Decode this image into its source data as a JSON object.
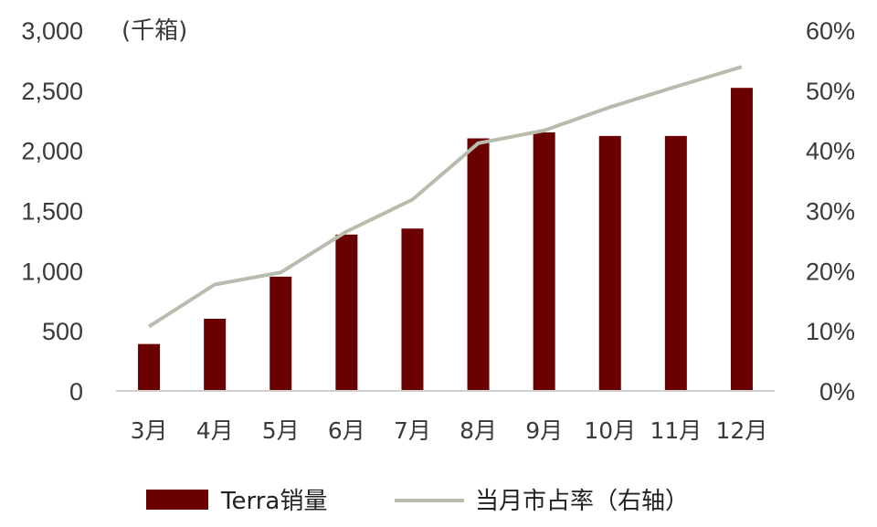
{
  "chart_data": {
    "type": "bar+line",
    "categories": [
      "3月",
      "4月",
      "5月",
      "6月",
      "7月",
      "8月",
      "9月",
      "10月",
      "11月",
      "12月"
    ],
    "series": [
      {
        "name": "Terra销量",
        "kind": "bar",
        "axis": "left",
        "color": "#6b0000",
        "values": [
          390,
          600,
          950,
          1300,
          1350,
          2100,
          2150,
          2120,
          2120,
          2520
        ]
      },
      {
        "name": "当月市占率（右轴）",
        "kind": "line",
        "axis": "right",
        "color": "#b7bcad",
        "values": [
          0.107,
          0.177,
          0.197,
          0.265,
          0.318,
          0.412,
          0.433,
          0.472,
          0.506,
          0.539
        ]
      }
    ],
    "left_axis": {
      "unit_label": "(千箱)",
      "ylim": [
        0,
        3000
      ],
      "ticks": [
        0,
        500,
        1000,
        1500,
        2000,
        2500,
        3000
      ],
      "tick_labels": [
        "0",
        "500",
        "1,000",
        "1,500",
        "2,000",
        "2,500",
        "3,000"
      ]
    },
    "right_axis": {
      "ylim": [
        0,
        0.6
      ],
      "ticks": [
        0,
        0.1,
        0.2,
        0.3,
        0.4,
        0.5,
        0.6
      ],
      "tick_labels": [
        "0%",
        "10%",
        "20%",
        "30%",
        "40%",
        "50%",
        "60%"
      ]
    },
    "grid": false,
    "legend_position": "bottom"
  }
}
